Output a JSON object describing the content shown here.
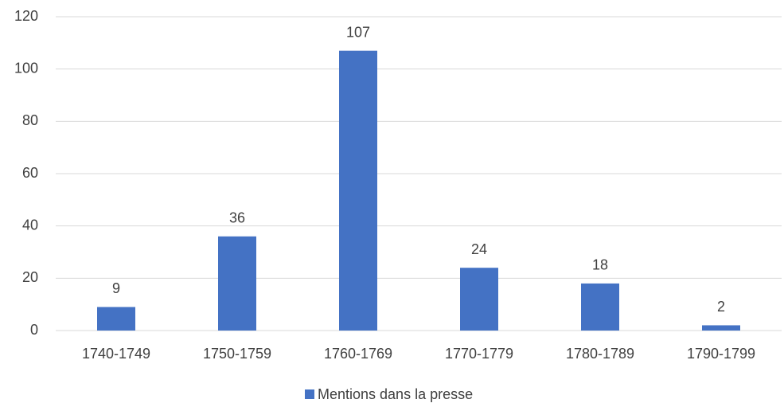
{
  "chart_data": {
    "type": "bar",
    "categories": [
      "1740-1749",
      "1750-1759",
      "1760-1769",
      "1770-1779",
      "1780-1789",
      "1790-1799"
    ],
    "series": [
      {
        "name": "Mentions dans la presse",
        "color": "#4472c4",
        "values": [
          9,
          36,
          107,
          24,
          18,
          2
        ]
      }
    ],
    "ylim": [
      0,
      120
    ],
    "yticks": [
      0,
      20,
      40,
      60,
      80,
      100,
      120
    ],
    "grid": true,
    "legend": "bottom"
  }
}
